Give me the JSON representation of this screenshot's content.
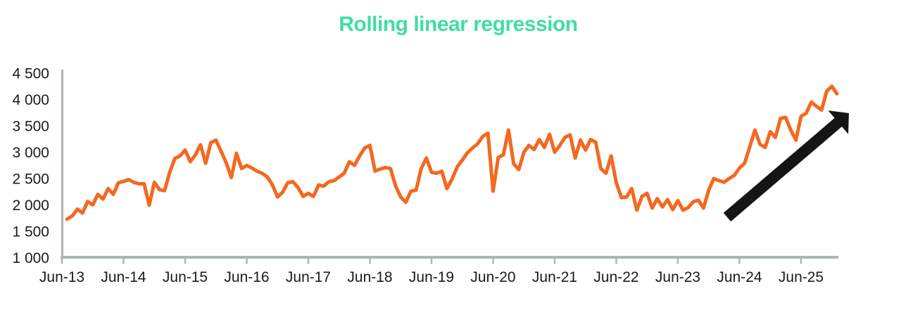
{
  "chart_data": {
    "type": "line",
    "title": "Rolling linear regression",
    "title_color": "#3EDFA1",
    "line_color": "#F46820",
    "axis_color": "#ACB6B5",
    "text_color": "#1B1B1B",
    "legend": "none",
    "grid": "off",
    "x_axis": {
      "tick_labels": [
        "Jun-13",
        "Jun-14",
        "Jun-15",
        "Jun-16",
        "Jun-17",
        "Jun-18",
        "Jun-19",
        "Jun-20",
        "Jun-21",
        "Jun-22",
        "Jun-23",
        "Jun-24",
        "Jun-25"
      ]
    },
    "y_axis": {
      "tick_labels": [
        "1 000",
        "1 500",
        "2 000",
        "2 500",
        "3 000",
        "3 500",
        "4 000",
        "4 500"
      ],
      "min": 1000,
      "max": 4500,
      "step": 500
    },
    "series": [
      {
        "name": "rolling-linear-regression",
        "x_start": "Jul-2013",
        "x_frequency": "monthly",
        "values": [
          1730,
          1790,
          1920,
          1845,
          2065,
          2000,
          2200,
          2110,
          2310,
          2200,
          2420,
          2445,
          2480,
          2430,
          2400,
          2400,
          1995,
          2430,
          2290,
          2270,
          2620,
          2880,
          2930,
          3040,
          2820,
          2950,
          3140,
          2790,
          3180,
          3230,
          3020,
          2800,
          2520,
          2980,
          2690,
          2750,
          2700,
          2640,
          2600,
          2530,
          2380,
          2150,
          2240,
          2420,
          2440,
          2330,
          2160,
          2220,
          2160,
          2380,
          2355,
          2440,
          2460,
          2530,
          2600,
          2820,
          2750,
          2930,
          3080,
          3130,
          2640,
          2680,
          2710,
          2690,
          2360,
          2150,
          2050,
          2260,
          2280,
          2690,
          2890,
          2620,
          2600,
          2640,
          2310,
          2490,
          2720,
          2850,
          2990,
          3080,
          3160,
          3300,
          3360,
          2260,
          2900,
          2950,
          3420,
          2780,
          2670,
          3000,
          3130,
          3050,
          3240,
          3090,
          3340,
          3000,
          3130,
          3280,
          3330,
          2890,
          3230,
          3040,
          3240,
          3190,
          2690,
          2600,
          2930,
          2420,
          2140,
          2150,
          2310,
          1900,
          2160,
          2220,
          1940,
          2120,
          1960,
          2100,
          1910,
          2080,
          1900,
          1950,
          2060,
          2090,
          1940,
          2280,
          2500,
          2460,
          2430,
          2500,
          2560,
          2700,
          2790,
          3100,
          3420,
          3150,
          3090,
          3390,
          3280,
          3640,
          3660,
          3420,
          3230,
          3680,
          3740,
          3950,
          3870,
          3800,
          4160,
          4250,
          4110
        ]
      }
    ],
    "annotations": [
      {
        "type": "arrow",
        "name": "upward-trend-arrow",
        "color": "#151515",
        "from_month": "Apr-2024",
        "from_value": 1770,
        "to_month": "Jan-2026",
        "to_value": 3740
      }
    ]
  }
}
